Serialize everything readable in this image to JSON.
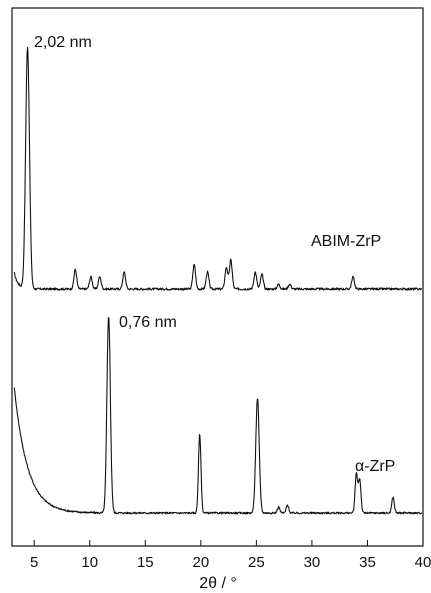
{
  "chart_data": {
    "type": "line",
    "title": "",
    "xlabel": "2θ / °",
    "ylabel": "",
    "xlim": [
      3,
      40
    ],
    "x_ticks": [
      5,
      10,
      15,
      20,
      25,
      30,
      35,
      40
    ],
    "y_axis_ticks": "none",
    "grid": false,
    "legend": "none",
    "series": [
      {
        "name": "ABIM-ZrP",
        "peaks": [
          [
            4.4,
            100
          ],
          [
            8.7,
            8
          ],
          [
            10.1,
            5
          ],
          [
            10.9,
            5
          ],
          [
            13.1,
            7
          ],
          [
            19.4,
            10
          ],
          [
            20.6,
            7
          ],
          [
            22.3,
            9
          ],
          [
            22.7,
            12
          ],
          [
            24.9,
            7
          ],
          [
            25.5,
            6
          ],
          [
            27.0,
            2
          ],
          [
            28.0,
            2
          ],
          [
            33.7,
            5
          ]
        ]
      },
      {
        "name": "α-ZrP",
        "peaks": [
          [
            11.7,
            100
          ],
          [
            19.9,
            40
          ],
          [
            25.1,
            58
          ],
          [
            27.0,
            3
          ],
          [
            27.8,
            4
          ],
          [
            34.0,
            20
          ],
          [
            34.3,
            17
          ],
          [
            37.3,
            8
          ]
        ]
      }
    ],
    "annotations": [
      {
        "text": "2,02 nm"
      },
      {
        "text": "0,76 nm"
      }
    ]
  }
}
